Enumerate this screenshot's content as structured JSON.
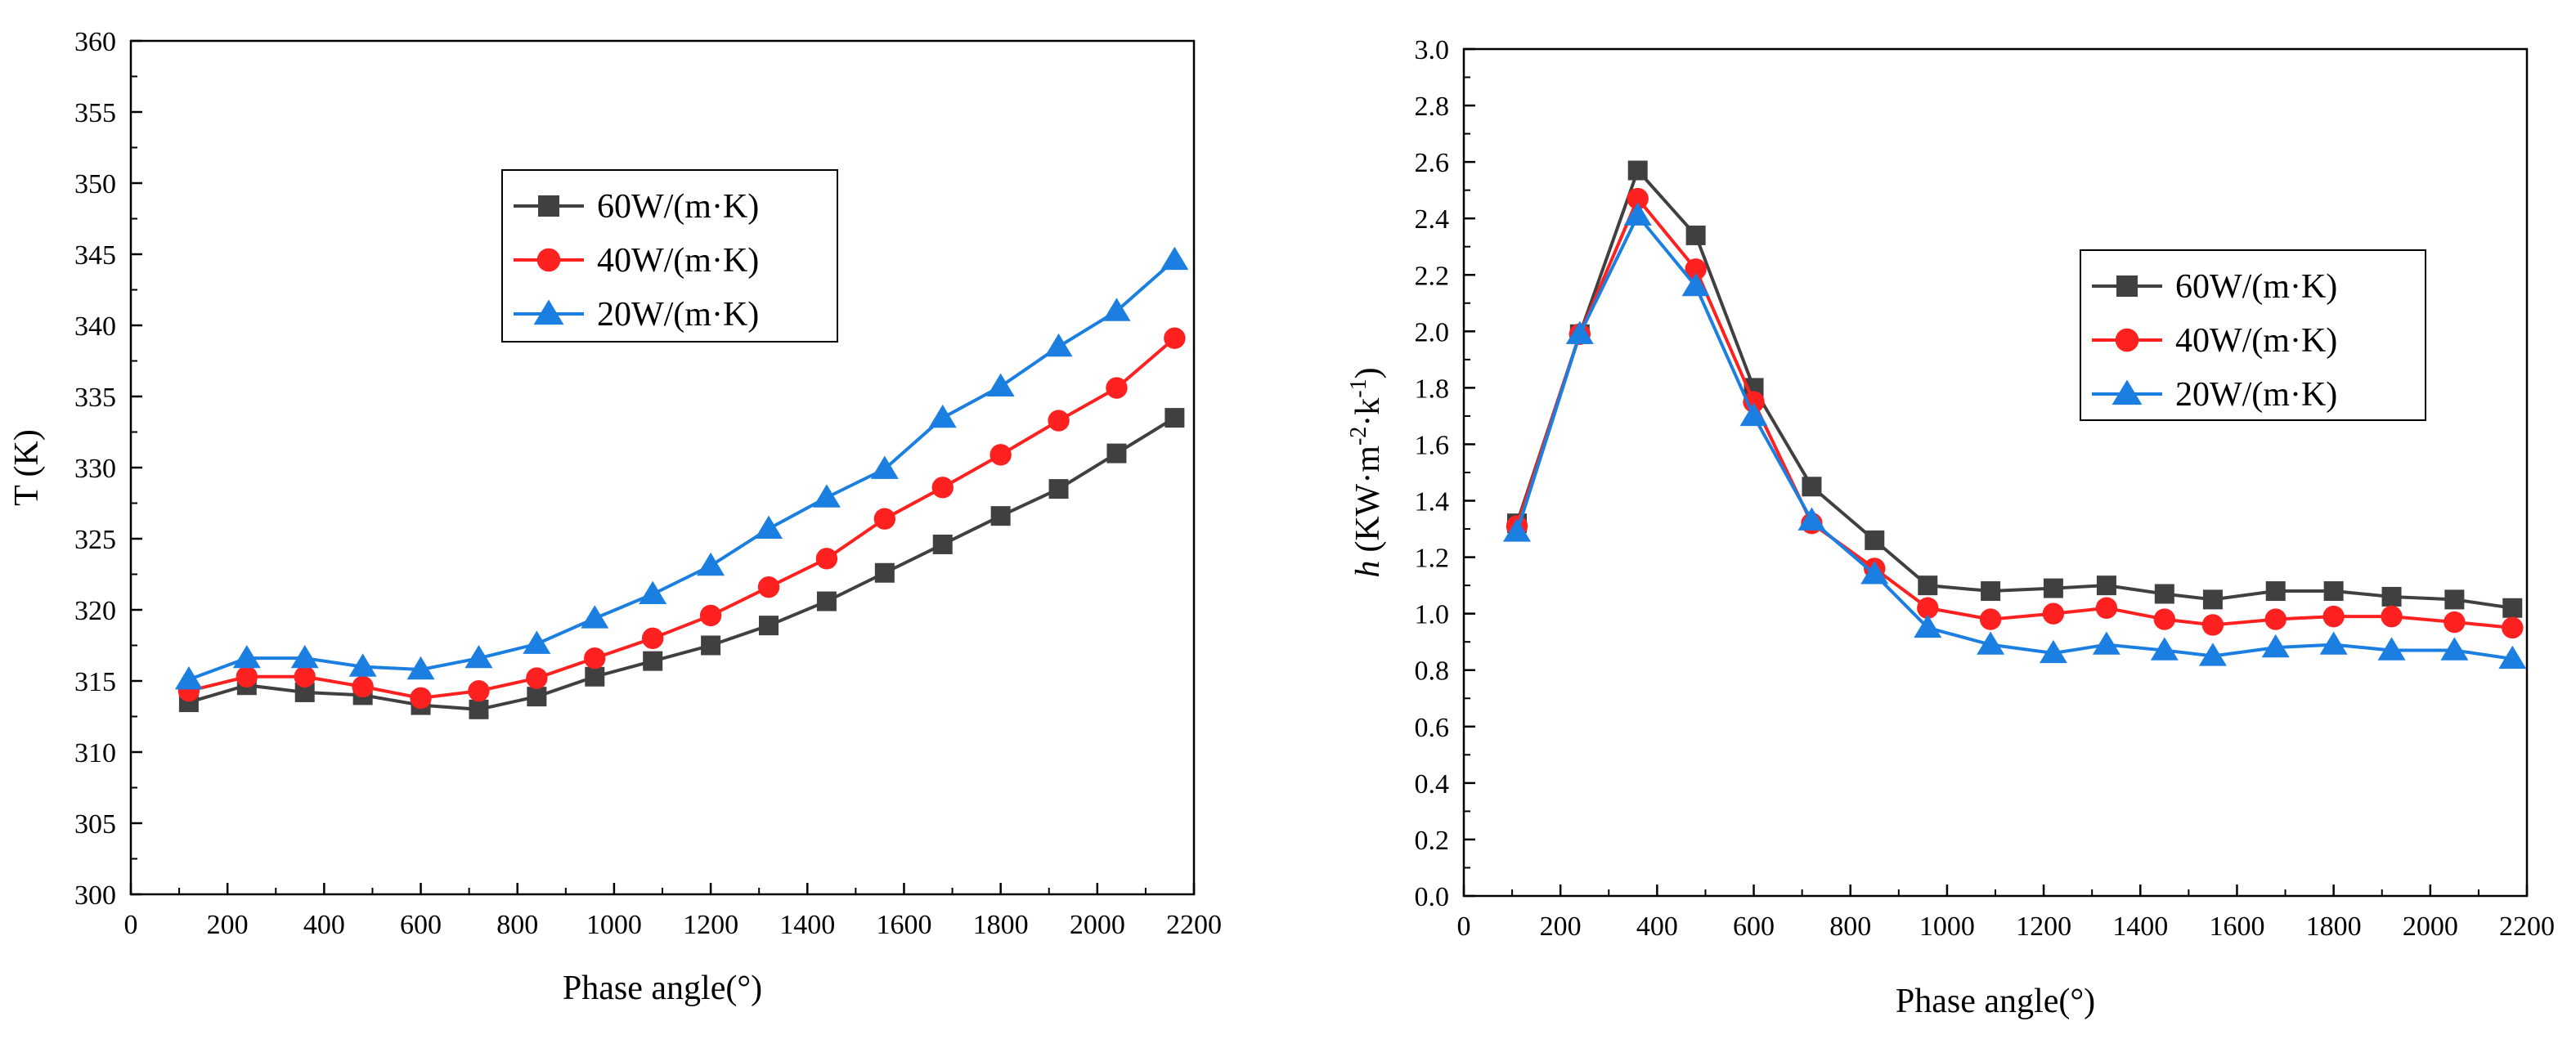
{
  "chart_data": [
    {
      "type": "line",
      "title": "",
      "xlabel": "Phase angle(°)",
      "ylabel": "T (K)",
      "xlim": [
        0,
        2200
      ],
      "ylim": [
        300,
        360
      ],
      "xticks": [
        0,
        200,
        400,
        600,
        800,
        1000,
        1200,
        1400,
        1600,
        1800,
        2000,
        2200
      ],
      "yticks": [
        300,
        305,
        310,
        315,
        320,
        325,
        330,
        335,
        340,
        345,
        350,
        355,
        360
      ],
      "legend_position": "upper-center",
      "x": [
        120,
        240,
        360,
        480,
        600,
        720,
        840,
        960,
        1080,
        1200,
        1320,
        1440,
        1560,
        1680,
        1800,
        1920,
        2040,
        2160
      ],
      "series": [
        {
          "name": "60W/(m·K)",
          "color": "#404040",
          "marker": "square",
          "values": [
            313.5,
            314.7,
            314.2,
            314.0,
            313.3,
            313.0,
            313.9,
            315.3,
            316.4,
            317.5,
            318.9,
            320.6,
            322.6,
            324.6,
            326.6,
            328.5,
            331.0,
            333.5
          ]
        },
        {
          "name": "40W/(m·K)",
          "color": "#ff2020",
          "marker": "circle",
          "values": [
            314.3,
            315.3,
            315.3,
            314.6,
            313.8,
            314.3,
            315.2,
            316.6,
            318.0,
            319.6,
            321.6,
            323.6,
            326.4,
            328.6,
            330.9,
            333.3,
            335.6,
            339.1
          ]
        },
        {
          "name": "20W/(m·K)",
          "color": "#1a7fe0",
          "marker": "triangle",
          "values": [
            315.1,
            316.6,
            316.6,
            316.0,
            315.8,
            316.6,
            317.6,
            319.4,
            321.1,
            323.1,
            325.7,
            327.9,
            329.9,
            333.5,
            335.7,
            338.5,
            341.0,
            344.6
          ]
        }
      ]
    },
    {
      "type": "line",
      "title": "",
      "xlabel": "Phase angle(°)",
      "ylabel": "h (KW·m⁻²·k⁻¹)",
      "ylabel_italic": "h",
      "ylabel_rest": "(KW·m",
      "ylabel_sup1": "-2",
      "ylabel_mid": "·k",
      "ylabel_sup2": "-1",
      "ylabel_end": ")",
      "xlim": [
        0,
        2200
      ],
      "ylim": [
        0.0,
        3.0
      ],
      "xticks": [
        0,
        200,
        400,
        600,
        800,
        1000,
        1200,
        1400,
        1600,
        1800,
        2000,
        2200
      ],
      "yticks": [
        "0.0",
        "0.2",
        "0.4",
        "0.6",
        "0.8",
        "1.0",
        "1.2",
        "1.4",
        "1.6",
        "1.8",
        "2.0",
        "2.2",
        "2.4",
        "2.6",
        "2.8",
        "3.0"
      ],
      "legend_position": "center-right",
      "x": [
        110,
        240,
        360,
        480,
        600,
        720,
        850,
        960,
        1090,
        1220,
        1330,
        1450,
        1550,
        1680,
        1800,
        1920,
        2050,
        2170
      ],
      "series": [
        {
          "name": "60W/(m·K)",
          "color": "#404040",
          "marker": "square",
          "values": [
            1.32,
            1.99,
            2.57,
            2.34,
            1.8,
            1.45,
            1.26,
            1.1,
            1.08,
            1.09,
            1.1,
            1.07,
            1.05,
            1.08,
            1.08,
            1.06,
            1.05,
            1.02
          ]
        },
        {
          "name": "40W/(m·K)",
          "color": "#ff2020",
          "marker": "circle",
          "values": [
            1.31,
            1.99,
            2.47,
            2.22,
            1.75,
            1.32,
            1.16,
            1.02,
            0.98,
            1.0,
            1.02,
            0.98,
            0.96,
            0.98,
            0.99,
            0.99,
            0.97,
            0.95
          ]
        },
        {
          "name": "20W/(m·K)",
          "color": "#1a7fe0",
          "marker": "triangle",
          "values": [
            1.29,
            1.99,
            2.41,
            2.16,
            1.7,
            1.33,
            1.14,
            0.95,
            0.89,
            0.86,
            0.89,
            0.87,
            0.85,
            0.88,
            0.89,
            0.87,
            0.87,
            0.84
          ]
        }
      ]
    }
  ]
}
